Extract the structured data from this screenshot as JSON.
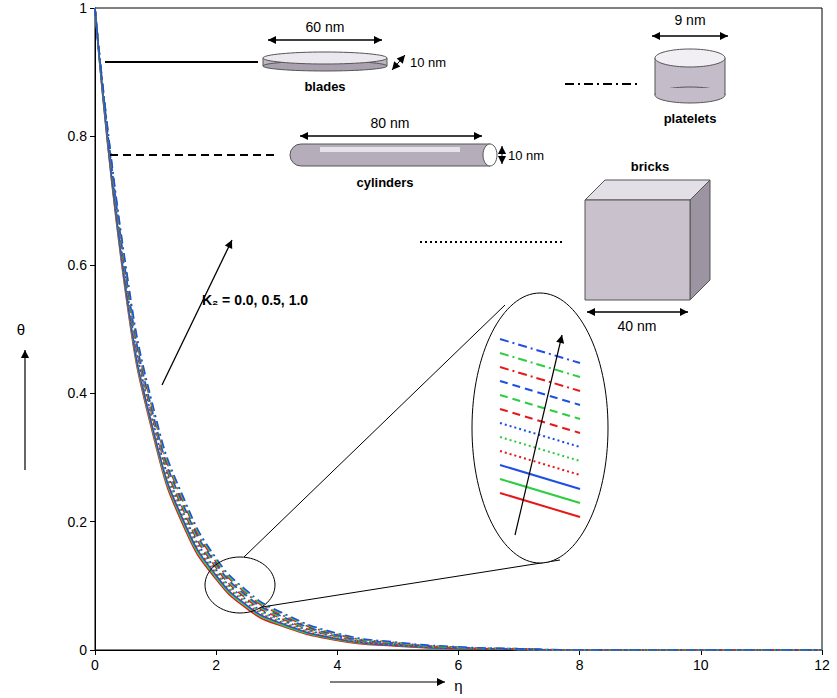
{
  "chart_data": {
    "type": "line",
    "x_label": "η",
    "y_label": "θ",
    "x": [
      0,
      0.5,
      1,
      1.5,
      2,
      2.5,
      3,
      4,
      5,
      6,
      7,
      8,
      10,
      12
    ],
    "xlim": [
      0,
      12
    ],
    "xticks": [
      0,
      2,
      4,
      6,
      8,
      10,
      12
    ],
    "ylim": [
      0,
      1
    ],
    "yticks": [
      0,
      0.2,
      0.4,
      0.6,
      0.8,
      1
    ],
    "grid": false,
    "annotations": [
      "K₂ = 0.0, 0.5, 1.0"
    ],
    "shape_key": [
      {
        "name": "blades",
        "line_style": "solid",
        "dimensions": [
          "60 nm",
          "10 nm"
        ]
      },
      {
        "name": "platelets",
        "line_style": "dashdot",
        "dimensions": [
          "9 nm"
        ]
      },
      {
        "name": "cylinders",
        "line_style": "dashed",
        "dimensions": [
          "80 nm",
          "10 nm"
        ]
      },
      {
        "name": "bricks",
        "line_style": "dotted",
        "dimensions": [
          "40 nm"
        ]
      }
    ],
    "series": [
      {
        "color": "#e6191a",
        "line_style": "solid",
        "values": [
          1,
          0.56,
          0.32,
          0.185,
          0.11,
          0.065,
          0.04,
          0.015,
          0.006,
          0.002,
          0.001,
          0,
          0,
          0
        ]
      },
      {
        "color": "#2ecc40",
        "line_style": "solid",
        "values": [
          1,
          0.564,
          0.324,
          0.189,
          0.113,
          0.068,
          0.042,
          0.016,
          0.007,
          0.002,
          0.001,
          0,
          0,
          0
        ]
      },
      {
        "color": "#1f4fe0",
        "line_style": "solid",
        "values": [
          1,
          0.568,
          0.328,
          0.193,
          0.116,
          0.07,
          0.044,
          0.017,
          0.007,
          0.002,
          0.001,
          0,
          0,
          0
        ]
      },
      {
        "color": "#e6191a",
        "line_style": "dotted",
        "values": [
          1,
          0.572,
          0.332,
          0.197,
          0.119,
          0.073,
          0.046,
          0.018,
          0.008,
          0.003,
          0.001,
          0,
          0,
          0
        ]
      },
      {
        "color": "#2ecc40",
        "line_style": "dotted",
        "values": [
          1,
          0.576,
          0.336,
          0.201,
          0.122,
          0.075,
          0.048,
          0.019,
          0.008,
          0.003,
          0.001,
          0,
          0,
          0
        ]
      },
      {
        "color": "#1f4fe0",
        "line_style": "dotted",
        "values": [
          1,
          0.58,
          0.34,
          0.205,
          0.125,
          0.078,
          0.05,
          0.02,
          0.009,
          0.003,
          0.001,
          0,
          0,
          0
        ]
      },
      {
        "color": "#e6191a",
        "line_style": "dashed",
        "values": [
          1,
          0.584,
          0.344,
          0.209,
          0.128,
          0.08,
          0.052,
          0.021,
          0.009,
          0.003,
          0.001,
          0,
          0,
          0
        ]
      },
      {
        "color": "#2ecc40",
        "line_style": "dashed",
        "values": [
          1,
          0.588,
          0.348,
          0.213,
          0.131,
          0.083,
          0.054,
          0.022,
          0.01,
          0.004,
          0.001,
          0,
          0,
          0
        ]
      },
      {
        "color": "#1f4fe0",
        "line_style": "dashed",
        "values": [
          1,
          0.592,
          0.352,
          0.217,
          0.134,
          0.085,
          0.056,
          0.023,
          0.01,
          0.004,
          0.001,
          0,
          0,
          0
        ]
      },
      {
        "color": "#e6191a",
        "line_style": "dashdot",
        "values": [
          1,
          0.596,
          0.356,
          0.221,
          0.137,
          0.088,
          0.058,
          0.024,
          0.011,
          0.004,
          0.002,
          0,
          0,
          0
        ]
      },
      {
        "color": "#2ecc40",
        "line_style": "dashdot",
        "values": [
          1,
          0.6,
          0.36,
          0.225,
          0.14,
          0.09,
          0.06,
          0.025,
          0.011,
          0.004,
          0.002,
          0,
          0,
          0
        ]
      },
      {
        "color": "#1f4fe0",
        "line_style": "dashdot",
        "values": [
          1,
          0.604,
          0.364,
          0.229,
          0.143,
          0.093,
          0.062,
          0.026,
          0.012,
          0.005,
          0.002,
          0,
          0,
          0
        ]
      }
    ]
  }
}
